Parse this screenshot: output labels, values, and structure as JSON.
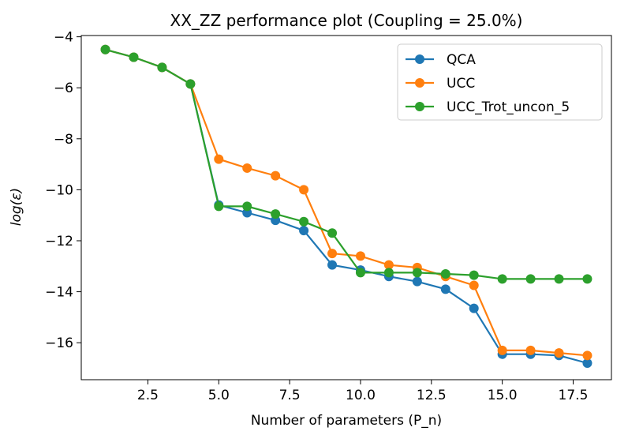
{
  "chart_data": {
    "type": "line",
    "title": "XX_ZZ performance plot (Coupling = 25.0%)",
    "xlabel": "Number of parameters (P_n)",
    "ylabel": "log(ε)",
    "xlim": [
      0.15,
      18.85
    ],
    "ylim": [
      -17.45,
      -3.95
    ],
    "xticks": [
      2.5,
      5.0,
      7.5,
      10.0,
      12.5,
      15.0,
      17.5
    ],
    "xtick_labels": [
      "2.5",
      "5.0",
      "7.5",
      "10.0",
      "12.5",
      "15.0",
      "17.5"
    ],
    "yticks": [
      -16,
      -14,
      -12,
      -10,
      -8,
      -6,
      -4
    ],
    "ytick_labels": [
      "−16",
      "−14",
      "−12",
      "−10",
      "−8",
      "−6",
      "−4"
    ],
    "grid": false,
    "legend_position": "top-right",
    "x": [
      1,
      2,
      3,
      4,
      5,
      6,
      7,
      8,
      9,
      10,
      11,
      12,
      13,
      14,
      15,
      16,
      17,
      18
    ],
    "series": [
      {
        "name": "QCA",
        "color": "#1f77b4",
        "values": [
          -4.5,
          -4.8,
          -5.2,
          -5.85,
          -10.6,
          -10.9,
          -11.2,
          -11.6,
          -12.95,
          -13.15,
          -13.4,
          -13.6,
          -13.9,
          -14.65,
          -16.45,
          -16.45,
          -16.5,
          -16.8
        ]
      },
      {
        "name": "UCC",
        "color": "#ff7f0e",
        "values": [
          -4.5,
          -4.8,
          -5.2,
          -5.85,
          -8.8,
          -9.15,
          -9.45,
          -10.0,
          -12.5,
          -12.6,
          -12.95,
          -13.05,
          -13.4,
          -13.75,
          -16.3,
          -16.3,
          -16.4,
          -16.5
        ]
      },
      {
        "name": "UCC_Trot_uncon_5",
        "color": "#2ca02c",
        "values": [
          -4.5,
          -4.8,
          -5.2,
          -5.85,
          -10.65,
          -10.65,
          -10.95,
          -11.25,
          -11.7,
          -13.25,
          -13.25,
          -13.25,
          -13.3,
          -13.35,
          -13.5,
          -13.5,
          -13.5,
          -13.5
        ]
      }
    ]
  }
}
